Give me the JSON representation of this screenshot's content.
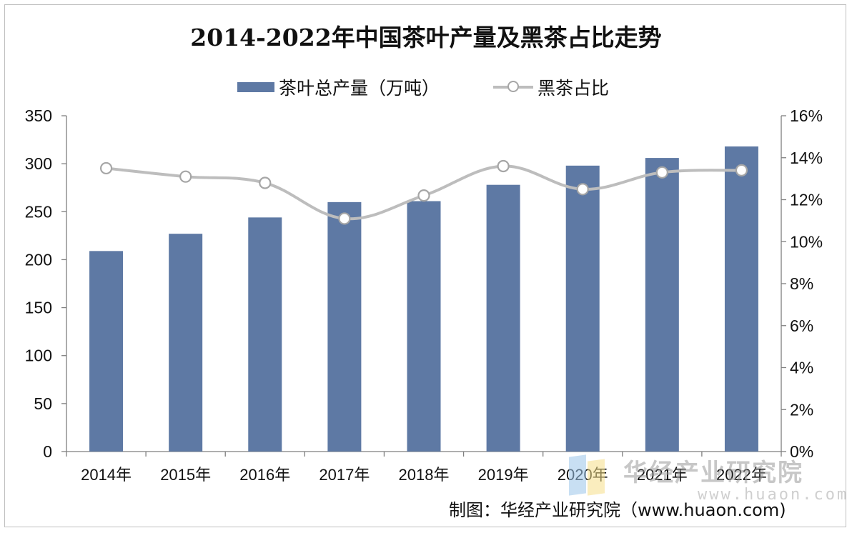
{
  "chart_data": {
    "type": "bar",
    "title": "2014-2022年中国茶叶产量及黑茶占比走势",
    "categories": [
      "2014年",
      "2015年",
      "2016年",
      "2017年",
      "2018年",
      "2019年",
      "2020年",
      "2021年",
      "2022年"
    ],
    "series": [
      {
        "name": "茶叶总产量（万吨）",
        "type": "bar",
        "axis": "left",
        "color": "#5e79a4",
        "values": [
          209,
          227,
          244,
          260,
          261,
          278,
          298,
          306,
          318
        ]
      },
      {
        "name": "黑茶占比",
        "type": "line",
        "axis": "right",
        "color": "#bdbdbd",
        "values": [
          13.5,
          13.1,
          12.8,
          11.1,
          12.2,
          13.6,
          12.5,
          13.3,
          13.4
        ]
      }
    ],
    "y_left": {
      "ylim": [
        0,
        350
      ],
      "ticks": [
        0,
        50,
        100,
        150,
        200,
        250,
        300,
        350
      ],
      "tick_labels": [
        "0",
        "50",
        "100",
        "150",
        "200",
        "250",
        "300",
        "350"
      ]
    },
    "y_right": {
      "ylim": [
        0,
        16
      ],
      "ticks": [
        0,
        2,
        4,
        6,
        8,
        10,
        12,
        14,
        16
      ],
      "tick_labels": [
        "0%",
        "2%",
        "4%",
        "6%",
        "8%",
        "10%",
        "12%",
        "14%",
        "16%"
      ]
    },
    "grid": false,
    "legend_position": "top"
  },
  "source": "制图：华经产业研究院（www.huaon.com)",
  "watermark": {
    "name": "华经产业研究院",
    "url": "www.huaon.com"
  }
}
